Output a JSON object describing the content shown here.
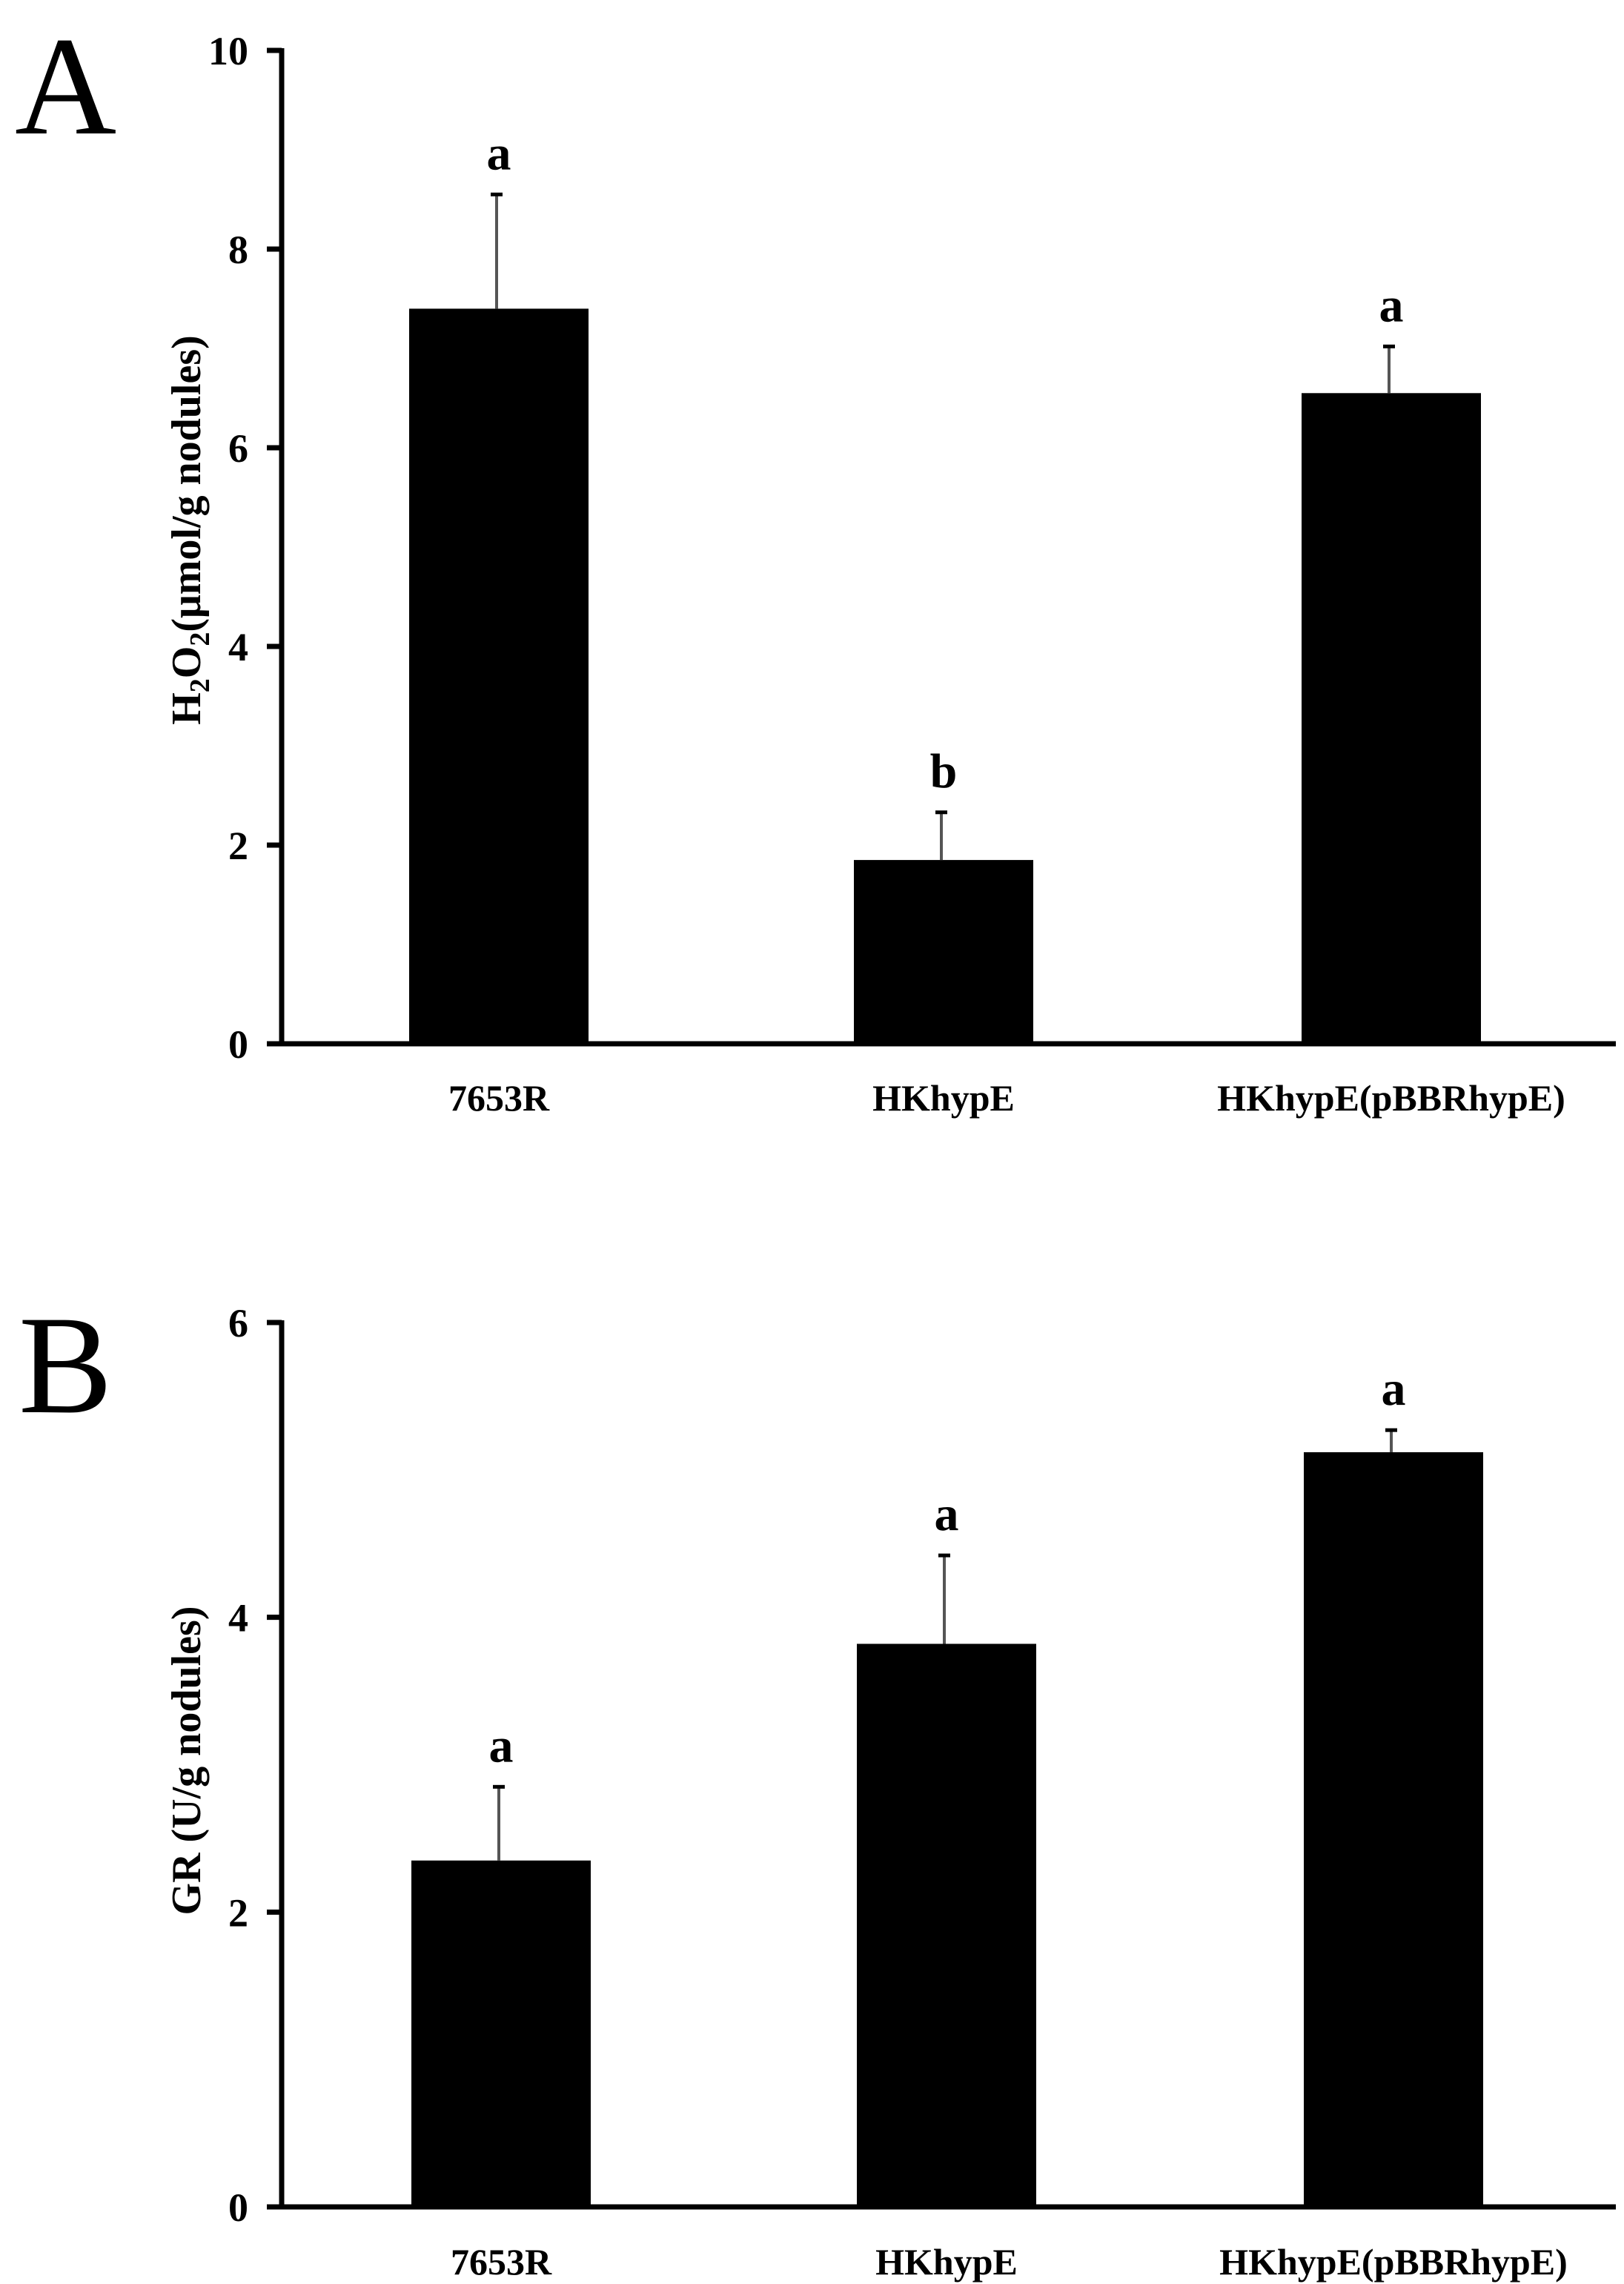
{
  "chart_data": [
    {
      "panel_label": "A",
      "type": "bar",
      "ylabel": {
        "prefix": "H",
        "sub1": "2",
        "mid": "O",
        "sub2": "2",
        "suffix": "(μmol/g nodules)"
      },
      "ylim": [
        0,
        10
      ],
      "yticks": [
        "0",
        "2",
        "4",
        "6",
        "8",
        "10"
      ],
      "categories": [
        "7653R",
        "HKhypE",
        "HKhypE(pBBRhypE)"
      ],
      "values": [
        7.4,
        1.85,
        6.55
      ],
      "errors": [
        1.15,
        0.48,
        0.47
      ],
      "significance": [
        "a",
        "b",
        "a"
      ],
      "bar_color": "#000000",
      "grid": false
    },
    {
      "panel_label": "B",
      "type": "bar",
      "ylabel": "GR (U/g nodules)",
      "ylim": [
        0,
        6
      ],
      "yticks": [
        "0",
        "2",
        "4",
        "6"
      ],
      "categories": [
        "7653R",
        "HKhypE",
        "HKhypE(pBBRhypE)"
      ],
      "values": [
        2.35,
        3.82,
        5.12
      ],
      "errors": [
        0.5,
        0.6,
        0.15
      ],
      "significance": [
        "a",
        "a",
        "a"
      ],
      "bar_color": "#000000",
      "grid": false
    }
  ]
}
